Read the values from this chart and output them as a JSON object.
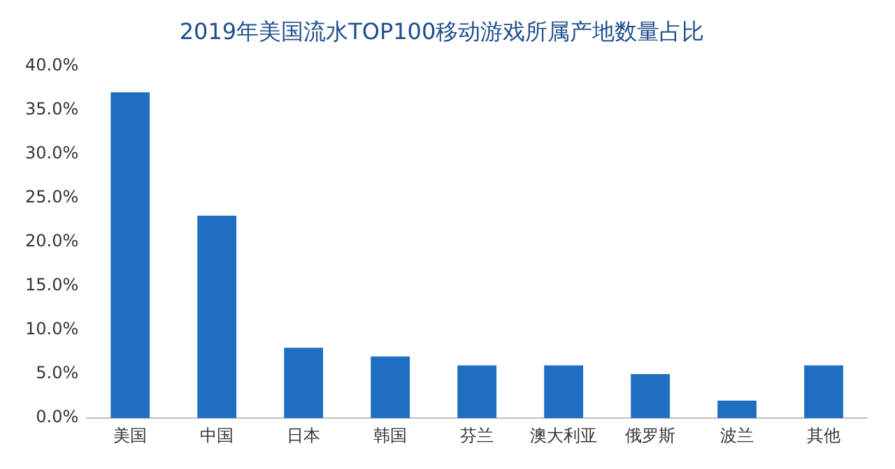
{
  "chart_data": {
    "type": "bar",
    "title": "2019年美国流水TOP100移动游戏所属产地数量占比",
    "categories": [
      "美国",
      "中国",
      "日本",
      "韩国",
      "芬兰",
      "澳大利亚",
      "俄罗斯",
      "波兰",
      "其他"
    ],
    "values": [
      37,
      23,
      8,
      7,
      6,
      6,
      5,
      2,
      6
    ],
    "color": "#1f6ec2",
    "ylim": [
      0,
      40
    ],
    "yticks": [
      {
        "value": 0,
        "label": "0.0%"
      },
      {
        "value": 5,
        "label": "5.0%"
      },
      {
        "value": 10,
        "label": "10.0%"
      },
      {
        "value": 15,
        "label": "15.0%"
      },
      {
        "value": 20,
        "label": "20.0%"
      },
      {
        "value": 25,
        "label": "25.0%"
      },
      {
        "value": 30,
        "label": "30.0%"
      },
      {
        "value": 35,
        "label": "35.0%"
      },
      {
        "value": 40,
        "label": "40.0%"
      }
    ],
    "grid": false,
    "legend": false
  }
}
